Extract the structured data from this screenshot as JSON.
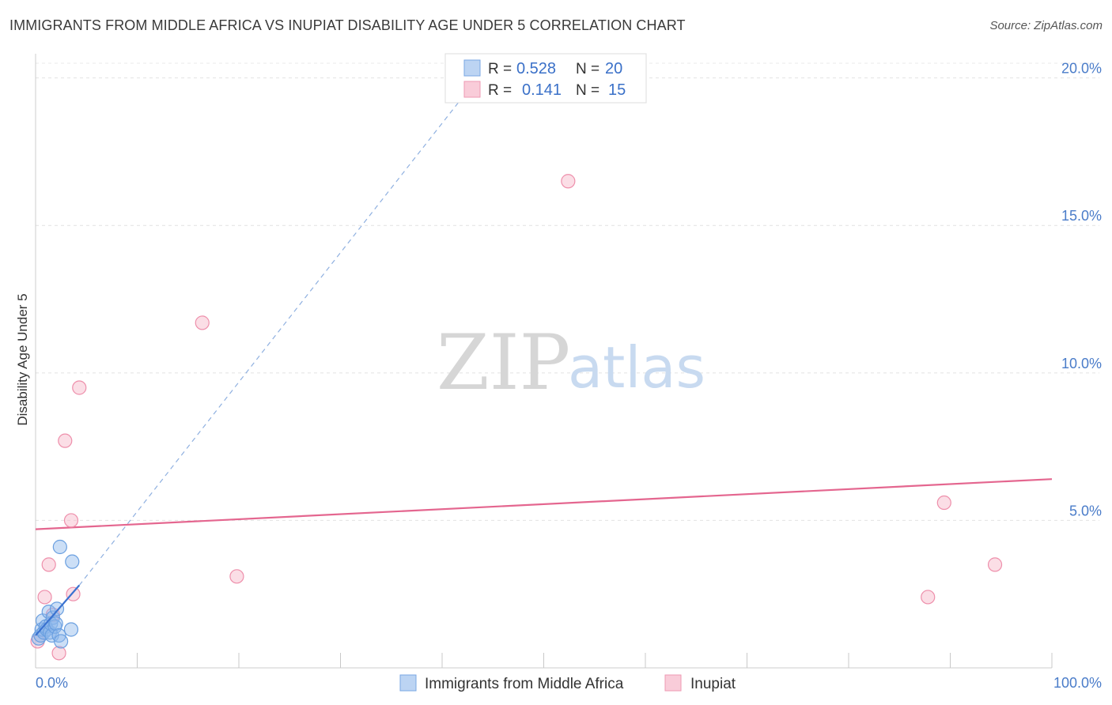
{
  "header": {
    "title": "IMMIGRANTS FROM MIDDLE AFRICA VS INUPIAT DISABILITY AGE UNDER 5 CORRELATION CHART",
    "source": "Source: ZipAtlas.com"
  },
  "watermark": {
    "zip": "ZIP",
    "atlas": "atlas"
  },
  "legend_box": {
    "rows": [
      {
        "r_label": "R = ",
        "r_value": "0.528",
        "n_label": "N = ",
        "n_value": "20"
      },
      {
        "r_label": "R = ",
        "r_value": "0.141",
        "n_label": "N = ",
        "n_value": "15"
      }
    ]
  },
  "chart_data": {
    "type": "scatter",
    "title": "IMMIGRANTS FROM MIDDLE AFRICA VS INUPIAT DISABILITY AGE UNDER 5 CORRELATION CHART",
    "xlabel": "",
    "ylabel": "Disability Age Under 5",
    "xlim": [
      0,
      100
    ],
    "ylim": [
      0,
      20.5
    ],
    "x_tick_labels": [
      "0.0%",
      "100.0%"
    ],
    "y_ticks": [
      5,
      10,
      15,
      20
    ],
    "y_tick_labels": [
      "5.0%",
      "10.0%",
      "15.0%",
      "20.0%"
    ],
    "grid": true,
    "legend_position": "bottom-center",
    "series": [
      {
        "name": "Immigrants from Middle Africa",
        "color": "#8fb8ea",
        "stroke": "#6a9fe0",
        "r": 0.528,
        "n": 20,
        "trend": {
          "x0": 0,
          "y0": 1.1,
          "x1": 4.3,
          "y1": 2.8,
          "dash_to_x": 43.5,
          "dash_to_y": 20.0,
          "color": "#3a72d0"
        },
        "points": [
          [
            0.3,
            1.0
          ],
          [
            0.5,
            1.1
          ],
          [
            0.6,
            1.3
          ],
          [
            0.7,
            1.6
          ],
          [
            0.8,
            1.2
          ],
          [
            1.0,
            1.4
          ],
          [
            1.1,
            1.3
          ],
          [
            1.3,
            1.9
          ],
          [
            1.4,
            1.2
          ],
          [
            1.5,
            1.5
          ],
          [
            1.6,
            1.1
          ],
          [
            1.7,
            1.7
          ],
          [
            1.9,
            1.4
          ],
          [
            2.0,
            1.5
          ],
          [
            2.1,
            2.0
          ],
          [
            2.3,
            1.1
          ],
          [
            2.4,
            4.1
          ],
          [
            2.5,
            0.9
          ],
          [
            3.5,
            1.3
          ],
          [
            3.6,
            3.6
          ]
        ]
      },
      {
        "name": "Inupiat",
        "color": "#f7b6c8",
        "stroke": "#ee8fab",
        "r": 0.141,
        "n": 15,
        "trend": {
          "x0": 0,
          "y0": 4.7,
          "x1": 100,
          "y1": 6.4,
          "color": "#e4668f"
        },
        "points": [
          [
            0.2,
            0.9
          ],
          [
            0.9,
            2.4
          ],
          [
            1.3,
            3.5
          ],
          [
            1.7,
            1.8
          ],
          [
            2.3,
            0.5
          ],
          [
            2.9,
            7.7
          ],
          [
            3.5,
            5.0
          ],
          [
            3.7,
            2.5
          ],
          [
            4.3,
            9.5
          ],
          [
            16.4,
            11.7
          ],
          [
            19.8,
            3.1
          ],
          [
            52.4,
            16.5
          ],
          [
            87.8,
            2.4
          ],
          [
            89.4,
            5.6
          ],
          [
            94.4,
            3.5
          ]
        ]
      }
    ]
  }
}
